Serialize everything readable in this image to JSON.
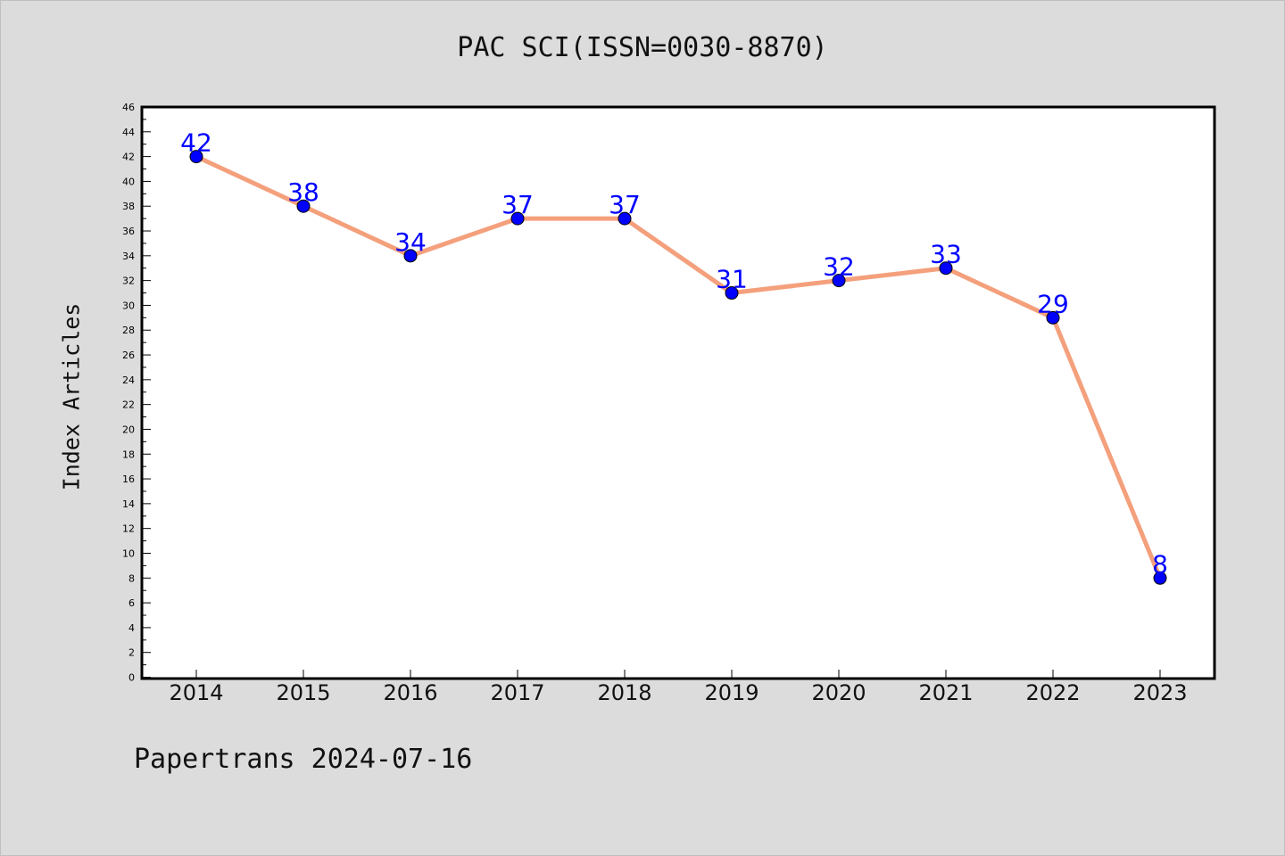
{
  "chart_data": {
    "type": "line",
    "title": "PAC SCI(ISSN=0030-8870)",
    "xlabel": "",
    "ylabel": "Index Articles",
    "categories": [
      "2014",
      "2015",
      "2016",
      "2017",
      "2018",
      "2019",
      "2020",
      "2021",
      "2022",
      "2023"
    ],
    "values": [
      42,
      38,
      34,
      37,
      37,
      31,
      32,
      33,
      29,
      8
    ],
    "ylim": [
      0,
      46
    ],
    "yticks": [
      "0",
      "2",
      "4",
      "6",
      "8",
      "10",
      "12",
      "14",
      "16",
      "18",
      "20",
      "22",
      "24",
      "26",
      "28",
      "30",
      "32",
      "34",
      "36",
      "38",
      "40",
      "42",
      "44",
      "46"
    ],
    "grid": false,
    "line_color": "#f4a07c",
    "marker_color": "#0000ff",
    "label_color": "#0000ff"
  },
  "footer": "Papertrans 2024-07-16"
}
